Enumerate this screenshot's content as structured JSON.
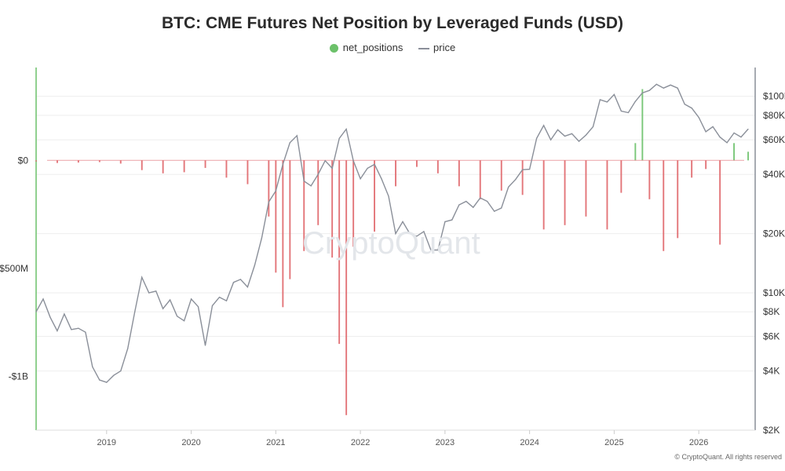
{
  "colors": {
    "green": "#6cc16a",
    "red": "#e0666a",
    "price": "#8a8f99"
  },
  "chart_data": {
    "type": "bar",
    "title": "BTC: CME Futures Net Position by Leveraged Funds (USD)",
    "legend": [
      "net_positions",
      "price"
    ],
    "legend_placement": "top-center",
    "y_left": {
      "ticks": [
        0,
        -500000000,
        -1000000000
      ],
      "tick_labels": [
        "$0",
        "-$500M",
        "-$1B"
      ],
      "range": [
        430000000,
        -1250000000
      ]
    },
    "y_right": {
      "scale": "log",
      "ticks": [
        2000,
        4000,
        6000,
        8000,
        10000,
        20000,
        40000,
        60000,
        80000,
        100000
      ],
      "tick_labels": [
        "$2K",
        "$4K",
        "$6K",
        "$8K",
        "$10K",
        "$20K",
        "$40K",
        "$60K",
        "$80K",
        "$100K"
      ],
      "range": [
        2000,
        140000
      ]
    },
    "x": {
      "ticks": [
        "2019",
        "2020",
        "2021",
        "2022",
        "2023",
        "2024",
        "2025",
        "2026"
      ],
      "range": [
        "2018-03-01",
        "2026-09-01"
      ]
    },
    "grid": true,
    "series": [
      {
        "name": "net_positions",
        "type": "bar",
        "unit": "USD",
        "points": [
          [
            "2018-03",
            -5000000
          ],
          [
            "2018-06",
            -12000000
          ],
          [
            "2018-09",
            -10000000
          ],
          [
            "2018-12",
            -8000000
          ],
          [
            "2019-03",
            -15000000
          ],
          [
            "2019-06",
            -45000000
          ],
          [
            "2019-09",
            -60000000
          ],
          [
            "2019-12",
            -55000000
          ],
          [
            "2020-03",
            -35000000
          ],
          [
            "2020-06",
            -80000000
          ],
          [
            "2020-09",
            -110000000
          ],
          [
            "2020-12",
            -260000000
          ],
          [
            "2021-01",
            -520000000
          ],
          [
            "2021-02",
            -680000000
          ],
          [
            "2021-03",
            -550000000
          ],
          [
            "2021-05",
            -420000000
          ],
          [
            "2021-07",
            -300000000
          ],
          [
            "2021-09",
            -450000000
          ],
          [
            "2021-10",
            -850000000
          ],
          [
            "2021-11",
            -1180000000
          ],
          [
            "2021-12",
            -400000000
          ],
          [
            "2022-03",
            -330000000
          ],
          [
            "2022-06",
            -120000000
          ],
          [
            "2022-09",
            -30000000
          ],
          [
            "2022-12",
            -60000000
          ],
          [
            "2023-03",
            -120000000
          ],
          [
            "2023-06",
            -180000000
          ],
          [
            "2023-09",
            -140000000
          ],
          [
            "2023-12",
            -160000000
          ],
          [
            "2024-03",
            -320000000
          ],
          [
            "2024-06",
            -300000000
          ],
          [
            "2024-09",
            -260000000
          ],
          [
            "2024-12",
            -320000000
          ],
          [
            "2025-02",
            -150000000
          ],
          [
            "2025-04",
            80000000
          ],
          [
            "2025-05",
            330000000
          ],
          [
            "2025-06",
            -180000000
          ],
          [
            "2025-08",
            -420000000
          ],
          [
            "2025-10",
            -360000000
          ],
          [
            "2025-12",
            -80000000
          ],
          [
            "2026-02",
            -40000000
          ],
          [
            "2026-04",
            -390000000
          ],
          [
            "2026-06",
            80000000
          ],
          [
            "2026-08",
            40000000
          ]
        ]
      },
      {
        "name": "price",
        "type": "line",
        "unit": "USD",
        "points": [
          [
            "2018-03",
            8000
          ],
          [
            "2018-04",
            9300
          ],
          [
            "2018-05",
            7500
          ],
          [
            "2018-06",
            6400
          ],
          [
            "2018-07",
            7800
          ],
          [
            "2018-08",
            6500
          ],
          [
            "2018-09",
            6600
          ],
          [
            "2018-10",
            6300
          ],
          [
            "2018-11",
            4200
          ],
          [
            "2018-12",
            3600
          ],
          [
            "2019-01",
            3500
          ],
          [
            "2019-02",
            3800
          ],
          [
            "2019-03",
            4000
          ],
          [
            "2019-04",
            5200
          ],
          [
            "2019-05",
            8000
          ],
          [
            "2019-06",
            12000
          ],
          [
            "2019-07",
            10000
          ],
          [
            "2019-08",
            10200
          ],
          [
            "2019-09",
            8300
          ],
          [
            "2019-10",
            9200
          ],
          [
            "2019-11",
            7600
          ],
          [
            "2019-12",
            7200
          ],
          [
            "2020-01",
            9300
          ],
          [
            "2020-02",
            8500
          ],
          [
            "2020-03",
            5400
          ],
          [
            "2020-04",
            8600
          ],
          [
            "2020-05",
            9500
          ],
          [
            "2020-06",
            9100
          ],
          [
            "2020-07",
            11300
          ],
          [
            "2020-08",
            11700
          ],
          [
            "2020-09",
            10700
          ],
          [
            "2020-10",
            13800
          ],
          [
            "2020-11",
            19000
          ],
          [
            "2020-12",
            29000
          ],
          [
            "2021-01",
            33000
          ],
          [
            "2021-02",
            45000
          ],
          [
            "2021-03",
            58000
          ],
          [
            "2021-04",
            63000
          ],
          [
            "2021-05",
            37000
          ],
          [
            "2021-06",
            35000
          ],
          [
            "2021-07",
            40000
          ],
          [
            "2021-08",
            47000
          ],
          [
            "2021-09",
            43000
          ],
          [
            "2021-10",
            61000
          ],
          [
            "2021-11",
            68000
          ],
          [
            "2021-12",
            47000
          ],
          [
            "2022-01",
            38000
          ],
          [
            "2022-02",
            43000
          ],
          [
            "2022-03",
            45000
          ],
          [
            "2022-04",
            38000
          ],
          [
            "2022-05",
            31000
          ],
          [
            "2022-06",
            20000
          ],
          [
            "2022-07",
            23000
          ],
          [
            "2022-08",
            20000
          ],
          [
            "2022-09",
            19400
          ],
          [
            "2022-10",
            20500
          ],
          [
            "2022-11",
            16500
          ],
          [
            "2022-12",
            16500
          ],
          [
            "2023-01",
            23000
          ],
          [
            "2023-02",
            23500
          ],
          [
            "2023-03",
            28000
          ],
          [
            "2023-04",
            29200
          ],
          [
            "2023-05",
            27200
          ],
          [
            "2023-06",
            30400
          ],
          [
            "2023-07",
            29200
          ],
          [
            "2023-08",
            26000
          ],
          [
            "2023-09",
            27000
          ],
          [
            "2023-10",
            34500
          ],
          [
            "2023-11",
            37700
          ],
          [
            "2023-12",
            42300
          ],
          [
            "2024-01",
            42500
          ],
          [
            "2024-02",
            61000
          ],
          [
            "2024-03",
            71000
          ],
          [
            "2024-04",
            60000
          ],
          [
            "2024-05",
            67500
          ],
          [
            "2024-06",
            62700
          ],
          [
            "2024-07",
            64500
          ],
          [
            "2024-08",
            59000
          ],
          [
            "2024-09",
            63500
          ],
          [
            "2024-10",
            70000
          ],
          [
            "2024-11",
            96000
          ],
          [
            "2024-12",
            93500
          ],
          [
            "2025-01",
            102000
          ],
          [
            "2025-02",
            84000
          ],
          [
            "2025-03",
            82500
          ],
          [
            "2025-04",
            94000
          ],
          [
            "2025-05",
            104000
          ],
          [
            "2025-06",
            107000
          ],
          [
            "2025-07",
            115000
          ],
          [
            "2025-08",
            110000
          ],
          [
            "2025-09",
            114000
          ],
          [
            "2025-10",
            110000
          ],
          [
            "2025-11",
            91000
          ],
          [
            "2025-12",
            87000
          ],
          [
            "2026-01",
            78000
          ],
          [
            "2026-02",
            66000
          ],
          [
            "2026-03",
            70000
          ],
          [
            "2026-04",
            62000
          ],
          [
            "2026-05",
            58000
          ],
          [
            "2026-06",
            65000
          ],
          [
            "2026-07",
            62000
          ],
          [
            "2026-08",
            68000
          ]
        ]
      }
    ]
  },
  "watermark": "CryptoQuant",
  "credit": "© CryptoQuant. All rights reserved"
}
